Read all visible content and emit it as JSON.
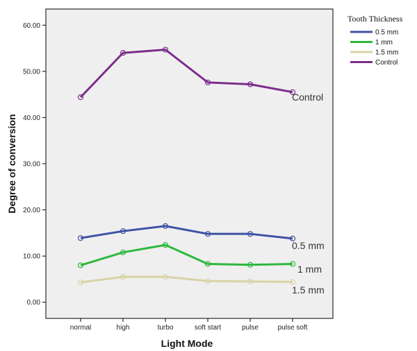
{
  "chart_data": {
    "type": "line",
    "xlabel": "Light Mode",
    "ylabel": "Degree of conversion",
    "categories": [
      "normal",
      "high",
      "turbo",
      "soft start",
      "pulse",
      "pulse soft"
    ],
    "ylim": [
      -3.5,
      63.5
    ],
    "yticks": [
      "0.00",
      "10.00",
      "20.00",
      "30.00",
      "40.00",
      "50.00",
      "60.00"
    ],
    "grid": false,
    "legend": {
      "title": "Tooth Thickness",
      "placement": "right",
      "entries": [
        "0.5 mm",
        "1 mm",
        "1.5 mm",
        "Control"
      ]
    },
    "series": [
      {
        "name": "0.5 mm",
        "color": "#3f51a5",
        "values": [
          13.9,
          15.4,
          16.5,
          14.8,
          14.8,
          13.8
        ]
      },
      {
        "name": "1 mm",
        "color": "#2db83d",
        "values": [
          8.0,
          10.8,
          12.4,
          8.3,
          8.1,
          8.3
        ]
      },
      {
        "name": "1.5 mm",
        "color": "#d9d3a6",
        "values": [
          4.3,
          5.5,
          5.5,
          4.6,
          4.5,
          4.4
        ]
      },
      {
        "name": "Control",
        "color": "#7b2d8b",
        "values": [
          44.4,
          54.0,
          54.7,
          47.6,
          47.2,
          45.5
        ]
      }
    ],
    "series_labels": [
      "Control",
      "0.5 mm",
      "1 mm",
      "1.5 mm"
    ]
  }
}
